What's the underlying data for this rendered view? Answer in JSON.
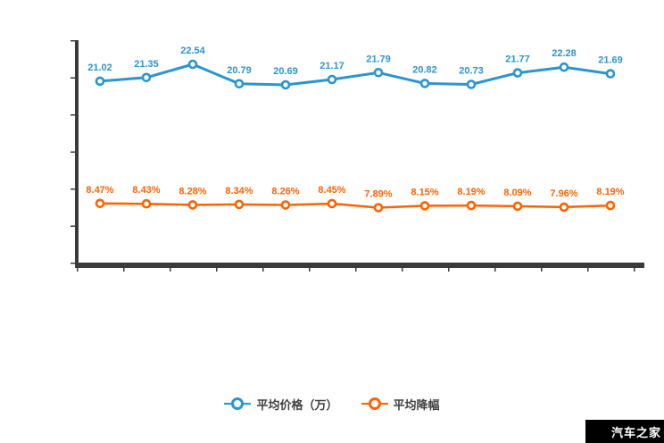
{
  "watermark": {
    "text": "汽车之家",
    "bg_color": "#000000",
    "text_color": "#ffffff"
  },
  "legend": {
    "items": [
      {
        "label": "平均价格（万）",
        "color": "#2a95cf"
      },
      {
        "label": "平均降幅",
        "color": "#ff6200"
      }
    ]
  },
  "chart_data": {
    "type": "line",
    "title": "",
    "xlabel": "",
    "ylabel": "",
    "x_tick_labels_visible": false,
    "y_tick_labels_visible": false,
    "n_points": 12,
    "categories": [
      "",
      "",
      "",
      "",
      "",
      "",
      "",
      "",
      "",
      "",
      "",
      ""
    ],
    "axis_color": "#3a3a3a",
    "grid": false,
    "legend_position": "bottom-center",
    "series": [
      {
        "name": "平均价格（万）",
        "color": "#2a95cf",
        "unit": "万",
        "values": [
          21.02,
          21.35,
          22.54,
          20.79,
          20.69,
          21.17,
          21.79,
          20.82,
          20.73,
          21.77,
          22.28,
          21.69
        ],
        "labels": [
          "21.02",
          "21.35",
          "22.54",
          "20.79",
          "20.69",
          "21.17",
          "21.79",
          "20.82",
          "20.73",
          "21.77",
          "22.28",
          "21.69"
        ]
      },
      {
        "name": "平均降幅",
        "color": "#ff6200",
        "unit": "%",
        "values": [
          8.47,
          8.43,
          8.28,
          8.34,
          8.26,
          8.45,
          7.89,
          8.15,
          8.19,
          8.09,
          7.96,
          8.19
        ],
        "labels": [
          "8.47%",
          "8.43%",
          "8.28%",
          "8.34%",
          "8.26%",
          "8.45%",
          "7.89%",
          "8.15%",
          "8.19%",
          "8.09%",
          "7.96%",
          "8.19%"
        ]
      }
    ]
  }
}
